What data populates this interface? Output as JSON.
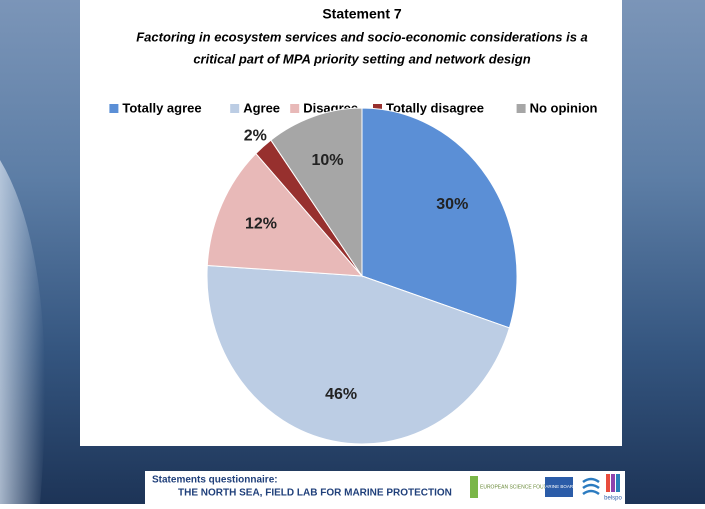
{
  "chart_data": {
    "type": "pie",
    "title": "Statement 7",
    "subtitle": [
      "Factoring in ecosystem services and socio-economic considerations is a",
      "critical part of MPA priority setting and network design"
    ],
    "categories": [
      "Totally agree",
      "Agree",
      "Disagree",
      "Totally disagree",
      "No opinion"
    ],
    "values": [
      30,
      46,
      12,
      2,
      10
    ],
    "value_labels": [
      "30%",
      "46%",
      "12%",
      "2%",
      "10%"
    ],
    "colors": [
      "#5b8fd6",
      "#bccde4",
      "#e8b9b8",
      "#97302e",
      "#a6a6a6"
    ],
    "legend": "top"
  },
  "footer": {
    "line1": "Statements questionnaire:",
    "line2": "THE NORTH SEA, FIELD LAB FOR MARINE PROTECTION",
    "logos": [
      "EUROPEAN SCIENCE FOUNDATION",
      "MARINE BOARD",
      "belspo"
    ]
  }
}
